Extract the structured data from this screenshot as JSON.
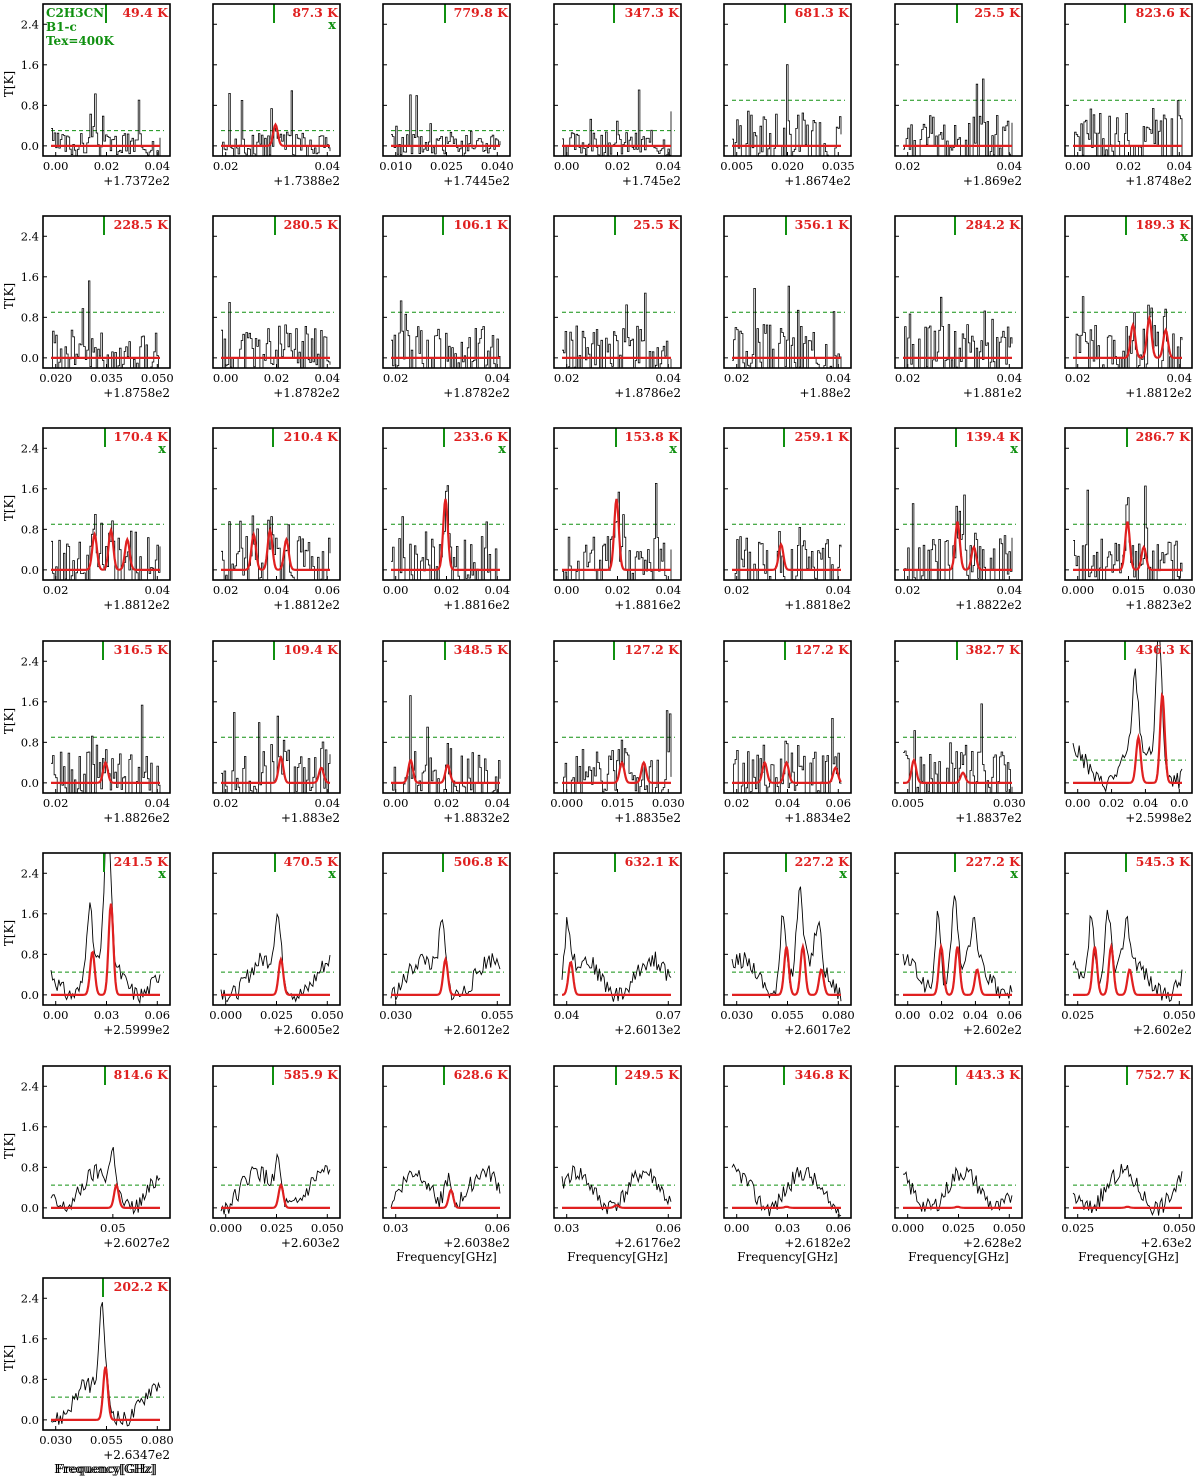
{
  "figure": {
    "molecule_label": "C2H3CN",
    "source_label": "B1-c",
    "tex_label": "Tex=400K",
    "xlabel": "Frequency[GHz]",
    "ylabel": "T[K]",
    "yticks": [
      "0.0",
      "0.8",
      "1.6",
      "2.4"
    ],
    "colors": {
      "data": "#000000",
      "model": "#e02020",
      "threshold": "#109010",
      "marker": "#109010",
      "energy": "#e02020"
    }
  },
  "chart_data": [
    {
      "type": "line",
      "energy": "49.4 K",
      "x_flag": "",
      "xticks": [
        "0.00",
        "0.02",
        "0.04"
      ],
      "offset": "+1.7372e2",
      "style": "step",
      "model": [],
      "ylim": [
        -0.2,
        2.8
      ]
    },
    {
      "type": "line",
      "energy": "87.3 K",
      "x_flag": "x",
      "xticks": [
        "0.02",
        "0.04"
      ],
      "offset": "+1.7388e2",
      "style": "step",
      "model": [
        [
          0.5,
          0.42
        ]
      ],
      "ylim": [
        -0.2,
        2.8
      ]
    },
    {
      "type": "line",
      "energy": "779.8 K",
      "x_flag": "",
      "xticks": [
        "0.010",
        "0.025",
        "0.040"
      ],
      "offset": "+1.7445e2",
      "style": "step",
      "model": [],
      "ylim": [
        -0.2,
        2.8
      ]
    },
    {
      "type": "line",
      "energy": "347.3 K",
      "x_flag": "",
      "xticks": [
        "0.00",
        "0.02",
        "0.04"
      ],
      "offset": "+1.745e2",
      "style": "step",
      "model": [],
      "ylim": [
        -0.2,
        2.8
      ]
    },
    {
      "type": "line",
      "energy": "681.3 K",
      "x_flag": "",
      "xticks": [
        "0.005",
        "0.020",
        "0.035"
      ],
      "offset": "+1.8674e2",
      "style": "step",
      "model": [],
      "ylim": [
        -0.2,
        2.8
      ]
    },
    {
      "type": "line",
      "energy": "25.5 K",
      "x_flag": "",
      "xticks": [
        "0.02",
        "0.04"
      ],
      "offset": "+1.869e2",
      "style": "step",
      "model": [],
      "ylim": [
        -0.2,
        2.8
      ]
    },
    {
      "type": "line",
      "energy": "823.6 K",
      "x_flag": "",
      "xticks": [
        "0.00",
        "0.02",
        "0.04"
      ],
      "offset": "+1.8748e2",
      "style": "step",
      "model": [],
      "ylim": [
        -0.2,
        2.8
      ]
    },
    {
      "type": "line",
      "energy": "228.5 K",
      "x_flag": "",
      "xticks": [
        "0.020",
        "0.035",
        "0.050"
      ],
      "offset": "+1.8758e2",
      "style": "step",
      "model": [],
      "ylim": [
        -0.2,
        2.8
      ]
    },
    {
      "type": "line",
      "energy": "280.5 K",
      "x_flag": "",
      "xticks": [
        "0.00",
        "0.02",
        "0.04"
      ],
      "offset": "+1.8782e2",
      "style": "step",
      "model": [],
      "ylim": [
        -0.2,
        2.8
      ]
    },
    {
      "type": "line",
      "energy": "106.1 K",
      "x_flag": "",
      "xticks": [
        "0.02",
        "0.04"
      ],
      "offset": "+1.8782e2",
      "style": "step",
      "model": [],
      "ylim": [
        -0.2,
        2.8
      ]
    },
    {
      "type": "line",
      "energy": "25.5 K",
      "x_flag": "",
      "xticks": [
        "0.02",
        "0.04"
      ],
      "offset": "+1.8786e2",
      "style": "step",
      "model": [],
      "ylim": [
        -0.2,
        2.8
      ]
    },
    {
      "type": "line",
      "energy": "356.1 K",
      "x_flag": "",
      "xticks": [
        "0.02",
        "0.04"
      ],
      "offset": "+1.88e2",
      "style": "step",
      "model": [],
      "ylim": [
        -0.2,
        2.8
      ]
    },
    {
      "type": "line",
      "energy": "284.2 K",
      "x_flag": "",
      "xticks": [
        "0.02",
        "0.04"
      ],
      "offset": "+1.881e2",
      "style": "step",
      "model": [],
      "ylim": [
        -0.2,
        2.8
      ]
    },
    {
      "type": "line",
      "energy": "189.3 K",
      "x_flag": "x",
      "xticks": [
        "0.02",
        "0.04"
      ],
      "offset": "+1.8812e2",
      "style": "step",
      "model": [
        [
          0.55,
          0.65
        ],
        [
          0.7,
          0.78
        ],
        [
          0.85,
          0.55
        ]
      ],
      "ylim": [
        -0.2,
        2.8
      ]
    },
    {
      "type": "line",
      "energy": "170.4 K",
      "x_flag": "x",
      "xticks": [
        "0.02",
        "0.04"
      ],
      "offset": "+1.8812e2",
      "style": "step",
      "model": [
        [
          0.4,
          0.7
        ],
        [
          0.55,
          0.78
        ],
        [
          0.7,
          0.6
        ]
      ],
      "ylim": [
        -0.2,
        2.8
      ]
    },
    {
      "type": "line",
      "energy": "210.4 K",
      "x_flag": "",
      "xticks": [
        "0.02",
        "0.04",
        "0.06"
      ],
      "offset": "+1.8812e2",
      "style": "step",
      "model": [
        [
          0.3,
          0.7
        ],
        [
          0.45,
          0.78
        ],
        [
          0.6,
          0.6
        ]
      ],
      "ylim": [
        -0.2,
        2.8
      ]
    },
    {
      "type": "line",
      "energy": "233.6 K",
      "x_flag": "x",
      "xticks": [
        "0.00",
        "0.02",
        "0.04"
      ],
      "offset": "+1.8816e2",
      "style": "step",
      "model": [
        [
          0.5,
          1.4
        ]
      ],
      "ylim": [
        -0.2,
        2.8
      ]
    },
    {
      "type": "line",
      "energy": "153.8 K",
      "x_flag": "x",
      "xticks": [
        "0.00",
        "0.02",
        "0.04"
      ],
      "offset": "+1.8816e2",
      "style": "step",
      "model": [
        [
          0.5,
          1.4
        ]
      ],
      "ylim": [
        -0.2,
        2.8
      ]
    },
    {
      "type": "line",
      "energy": "259.1 K",
      "x_flag": "",
      "xticks": [
        "0.02",
        "0.04"
      ],
      "offset": "+1.8818e2",
      "style": "step",
      "model": [
        [
          0.45,
          0.5
        ]
      ],
      "ylim": [
        -0.2,
        2.8
      ]
    },
    {
      "type": "line",
      "energy": "139.4 K",
      "x_flag": "x",
      "xticks": [
        "0.02",
        "0.04"
      ],
      "offset": "+1.8822e2",
      "style": "step",
      "model": [
        [
          0.5,
          0.95
        ],
        [
          0.65,
          0.45
        ]
      ],
      "ylim": [
        -0.2,
        2.8
      ]
    },
    {
      "type": "line",
      "energy": "286.7 K",
      "x_flag": "",
      "xticks": [
        "0.000",
        "0.015",
        "0.030"
      ],
      "offset": "+1.8823e2",
      "style": "step",
      "model": [
        [
          0.5,
          0.95
        ],
        [
          0.65,
          0.45
        ]
      ],
      "ylim": [
        -0.2,
        2.8
      ]
    },
    {
      "type": "line",
      "energy": "316.5 K",
      "x_flag": "",
      "xticks": [
        "0.02",
        "0.04"
      ],
      "offset": "+1.8826e2",
      "style": "step",
      "model": [
        [
          0.5,
          0.4
        ]
      ],
      "ylim": [
        -0.2,
        2.8
      ]
    },
    {
      "type": "line",
      "energy": "109.4 K",
      "x_flag": "",
      "xticks": [
        "0.02",
        "0.04"
      ],
      "offset": "+1.883e2",
      "style": "step",
      "model": [
        [
          0.55,
          0.5
        ],
        [
          0.92,
          0.3
        ]
      ],
      "ylim": [
        -0.2,
        2.8
      ]
    },
    {
      "type": "line",
      "energy": "348.5 K",
      "x_flag": "",
      "xticks": [
        "0.00",
        "0.02",
        "0.04"
      ],
      "offset": "+1.8832e2",
      "style": "step",
      "model": [
        [
          0.18,
          0.45
        ],
        [
          0.52,
          0.35
        ]
      ],
      "ylim": [
        -0.2,
        2.8
      ]
    },
    {
      "type": "line",
      "energy": "127.2 K",
      "x_flag": "",
      "xticks": [
        "0.000",
        "0.015",
        "0.030"
      ],
      "offset": "+1.8835e2",
      "style": "step",
      "model": [
        [
          0.55,
          0.4
        ],
        [
          0.75,
          0.4
        ]
      ],
      "ylim": [
        -0.2,
        2.8
      ]
    },
    {
      "type": "line",
      "energy": "127.2 K",
      "x_flag": "",
      "xticks": [
        "0.02",
        "0.04",
        "0.06"
      ],
      "offset": "+1.8834e2",
      "style": "step",
      "model": [
        [
          0.3,
          0.4
        ],
        [
          0.5,
          0.4
        ],
        [
          0.95,
          0.3
        ]
      ],
      "ylim": [
        -0.2,
        2.8
      ]
    },
    {
      "type": "line",
      "energy": "382.7 K",
      "x_flag": "",
      "xticks": [
        "0.005",
        "0.030"
      ],
      "offset": "+1.8837e2",
      "style": "step",
      "model": [
        [
          0.1,
          0.45
        ],
        [
          0.55,
          0.2
        ]
      ],
      "ylim": [
        -0.2,
        2.8
      ]
    },
    {
      "type": "line",
      "energy": "436.3 K",
      "x_flag": "",
      "xticks": [
        "0.00",
        "0.02",
        "0.04",
        "0.0"
      ],
      "offset": "+2.5998e2",
      "style": "noisy",
      "model": [
        [
          0.6,
          0.9
        ],
        [
          0.82,
          1.75
        ]
      ],
      "ylim": [
        -0.2,
        2.8
      ]
    },
    {
      "type": "line",
      "energy": "241.5 K",
      "x_flag": "x",
      "xticks": [
        "0.00",
        "0.03",
        "0.06"
      ],
      "offset": "+2.5999e2",
      "style": "noisy",
      "model": [
        [
          0.38,
          0.85
        ],
        [
          0.55,
          1.8
        ]
      ],
      "ylim": [
        -0.2,
        2.8
      ]
    },
    {
      "type": "line",
      "energy": "470.5 K",
      "x_flag": "x",
      "xticks": [
        "0.000",
        "0.025",
        "0.050"
      ],
      "offset": "+2.6005e2",
      "style": "noisy",
      "model": [
        [
          0.55,
          0.7
        ]
      ],
      "ylim": [
        -0.2,
        2.8
      ]
    },
    {
      "type": "line",
      "energy": "506.8 K",
      "x_flag": "",
      "xticks": [
        "0.030",
        "0.055"
      ],
      "offset": "+2.6012e2",
      "style": "noisy",
      "model": [
        [
          0.5,
          0.7
        ]
      ],
      "ylim": [
        -0.2,
        2.8
      ]
    },
    {
      "type": "line",
      "energy": "632.1 K",
      "x_flag": "",
      "xticks": [
        "0.04",
        "0.07"
      ],
      "offset": "+2.6013e2",
      "style": "noisy",
      "model": [
        [
          0.08,
          0.65
        ]
      ],
      "ylim": [
        -0.2,
        2.8
      ]
    },
    {
      "type": "line",
      "energy": "227.2 K",
      "x_flag": "x",
      "xticks": [
        "0.030",
        "0.055",
        "0.080"
      ],
      "offset": "+2.6017e2",
      "style": "noisy",
      "model": [
        [
          0.5,
          0.95
        ],
        [
          0.65,
          0.95
        ],
        [
          0.82,
          0.5
        ]
      ],
      "ylim": [
        -0.2,
        2.8
      ]
    },
    {
      "type": "line",
      "energy": "227.2 K",
      "x_flag": "x",
      "xticks": [
        "0.00",
        "0.02",
        "0.04",
        "0.06"
      ],
      "offset": "+2.602e2",
      "style": "noisy",
      "model": [
        [
          0.35,
          0.95
        ],
        [
          0.5,
          0.95
        ],
        [
          0.68,
          0.5
        ]
      ],
      "ylim": [
        -0.2,
        2.8
      ]
    },
    {
      "type": "line",
      "energy": "545.3 K",
      "x_flag": "",
      "xticks": [
        "0.025",
        "0.050"
      ],
      "offset": "+2.602e2",
      "style": "noisy",
      "model": [
        [
          0.2,
          0.95
        ],
        [
          0.35,
          0.95
        ],
        [
          0.52,
          0.5
        ]
      ],
      "ylim": [
        -0.2,
        2.8
      ]
    },
    {
      "type": "line",
      "energy": "814.6 K",
      "x_flag": "",
      "xticks": [
        "0.05"
      ],
      "offset": "+2.6027e2",
      "style": "noisy",
      "model": [
        [
          0.6,
          0.45
        ]
      ],
      "ylim": [
        -0.2,
        2.8
      ]
    },
    {
      "type": "line",
      "energy": "585.9 K",
      "x_flag": "",
      "xticks": [
        "0.000",
        "0.025",
        "0.050"
      ],
      "offset": "+2.603e2",
      "style": "noisy",
      "model": [
        [
          0.55,
          0.45
        ]
      ],
      "ylim": [
        -0.2,
        2.8
      ]
    },
    {
      "type": "line",
      "energy": "628.6 K",
      "x_flag": "",
      "xticks": [
        "0.03",
        "0.06"
      ],
      "offset": "+2.6038e2",
      "style": "noisy",
      "model": [
        [
          0.55,
          0.35
        ]
      ],
      "ylim": [
        -0.2,
        2.8
      ]
    },
    {
      "type": "line",
      "energy": "249.5 K",
      "x_flag": "",
      "xticks": [
        "0.03",
        "0.06"
      ],
      "offset": "+2.6176e2",
      "style": "noisy",
      "model": [
        [
          0.5,
          0.05
        ]
      ],
      "ylim": [
        -0.2,
        2.8
      ]
    },
    {
      "type": "line",
      "energy": "346.8 K",
      "x_flag": "",
      "xticks": [
        "0.00",
        "0.03",
        "0.06"
      ],
      "offset": "+2.6182e2",
      "style": "noisy",
      "model": [
        [
          0.5,
          0.02
        ]
      ],
      "ylim": [
        -0.2,
        2.8
      ]
    },
    {
      "type": "line",
      "energy": "443.3 K",
      "x_flag": "",
      "xticks": [
        "0.000",
        "0.025",
        "0.050"
      ],
      "offset": "+2.628e2",
      "style": "noisy",
      "model": [
        [
          0.5,
          0.02
        ]
      ],
      "ylim": [
        -0.2,
        2.8
      ]
    },
    {
      "type": "line",
      "energy": "752.7 K",
      "x_flag": "",
      "xticks": [
        "0.025",
        "0.050"
      ],
      "offset": "+2.63e2",
      "style": "noisy",
      "model": [
        [
          0.5,
          0.02
        ]
      ],
      "ylim": [
        -0.2,
        2.8
      ]
    },
    {
      "type": "line",
      "energy": "202.2 K",
      "x_flag": "",
      "xticks": [
        "0.030",
        "0.055",
        "0.080"
      ],
      "offset": "+2.6347e2",
      "style": "noisy",
      "model": [
        [
          0.5,
          1.05
        ]
      ],
      "ylim": [
        -0.2,
        2.8
      ]
    }
  ]
}
